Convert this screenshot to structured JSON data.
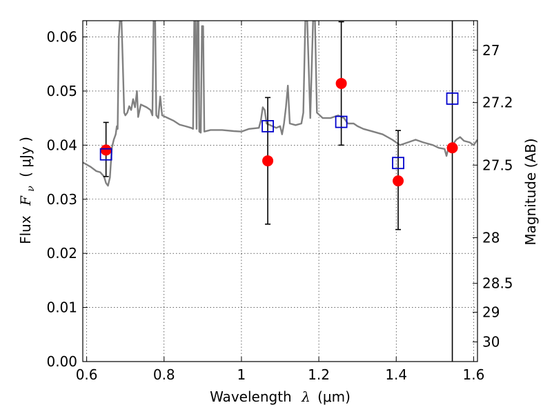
{
  "chart_data": {
    "type": "scatter",
    "xlabel": "Wavelength",
    "xlabel_symbol": "λ",
    "xlabel_unit": "(μm)",
    "ylabel": "Flux",
    "ylabel_symbol": "F",
    "ylabel_subscript": "ν",
    "ylabel_unit": "( μJy )",
    "y2label": "Magnitude (AB)",
    "xlim": [
      0.59,
      1.61
    ],
    "ylim": [
      0.0,
      0.063
    ],
    "grid": true,
    "x_ticks": [
      0.6,
      0.8,
      1.0,
      1.2,
      1.4,
      1.6
    ],
    "x_tick_labels": [
      "0.6",
      "0.8",
      "1",
      "1.2",
      "1.4",
      "1.6"
    ],
    "y_ticks": [
      0.0,
      0.01,
      0.02,
      0.03,
      0.04,
      0.05,
      0.06
    ],
    "y_tick_labels": [
      "0.00",
      "0.01",
      "0.02",
      "0.03",
      "0.04",
      "0.05",
      "0.06"
    ],
    "mag_ticks": [
      27,
      27.2,
      27.5,
      28,
      28.5,
      29,
      30
    ],
    "mag_tick_labels": [
      "27",
      "27.2",
      "27.5",
      "28",
      "28.5",
      "29",
      "30"
    ],
    "series": [
      {
        "kind": "observed",
        "marker": "filled-circle",
        "color": "#ff0000",
        "x": [
          0.65,
          1.068,
          1.258,
          1.405,
          1.545
        ],
        "y": [
          0.0391,
          0.0371,
          0.0514,
          0.0334,
          0.0395
        ],
        "yerr_low": [
          0.0342,
          0.0254,
          0.04,
          0.0244,
          0.0
        ],
        "yerr_high": [
          0.0442,
          0.0488,
          0.0628,
          0.0427,
          0.063
        ]
      },
      {
        "kind": "model",
        "marker": "open-square",
        "color": "#0000cc",
        "x": [
          0.65,
          1.068,
          1.258,
          1.405,
          1.545
        ],
        "y": [
          0.0383,
          0.0435,
          0.0443,
          0.0367,
          0.0486
        ]
      },
      {
        "kind": "spectrum",
        "color": "#808080",
        "points": [
          [
            0.59,
            0.0368
          ],
          [
            0.61,
            0.036
          ],
          [
            0.625,
            0.0352
          ],
          [
            0.635,
            0.035
          ],
          [
            0.645,
            0.0342
          ],
          [
            0.65,
            0.033
          ],
          [
            0.655,
            0.0325
          ],
          [
            0.66,
            0.034
          ],
          [
            0.665,
            0.0395
          ],
          [
            0.67,
            0.041
          ],
          [
            0.675,
            0.042
          ],
          [
            0.678,
            0.0435
          ],
          [
            0.68,
            0.043
          ],
          [
            0.683,
            0.06
          ],
          [
            0.686,
            0.063
          ],
          [
            0.69,
            0.063
          ],
          [
            0.693,
            0.056
          ],
          [
            0.697,
            0.046
          ],
          [
            0.7,
            0.0455
          ],
          [
            0.705,
            0.046
          ],
          [
            0.71,
            0.0472
          ],
          [
            0.715,
            0.0465
          ],
          [
            0.72,
            0.0485
          ],
          [
            0.725,
            0.047
          ],
          [
            0.73,
            0.05
          ],
          [
            0.733,
            0.0452
          ],
          [
            0.74,
            0.0475
          ],
          [
            0.755,
            0.047
          ],
          [
            0.765,
            0.0465
          ],
          [
            0.77,
            0.0455
          ],
          [
            0.773,
            0.063
          ],
          [
            0.777,
            0.063
          ],
          [
            0.78,
            0.0455
          ],
          [
            0.785,
            0.045
          ],
          [
            0.79,
            0.049
          ],
          [
            0.795,
            0.0455
          ],
          [
            0.81,
            0.045
          ],
          [
            0.825,
            0.0445
          ],
          [
            0.84,
            0.0438
          ],
          [
            0.855,
            0.0435
          ],
          [
            0.87,
            0.0432
          ],
          [
            0.875,
            0.043
          ],
          [
            0.878,
            0.063
          ],
          [
            0.881,
            0.063
          ],
          [
            0.884,
            0.043
          ],
          [
            0.886,
            0.063
          ],
          [
            0.889,
            0.063
          ],
          [
            0.891,
            0.0425
          ],
          [
            0.895,
            0.0423
          ],
          [
            0.898,
            0.062
          ],
          [
            0.901,
            0.062
          ],
          [
            0.904,
            0.0425
          ],
          [
            0.92,
            0.0428
          ],
          [
            0.95,
            0.0428
          ],
          [
            0.98,
            0.0426
          ],
          [
            1.0,
            0.0425
          ],
          [
            1.02,
            0.043
          ],
          [
            1.045,
            0.0432
          ],
          [
            1.05,
            0.0445
          ],
          [
            1.055,
            0.047
          ],
          [
            1.06,
            0.0465
          ],
          [
            1.065,
            0.044
          ],
          [
            1.08,
            0.0435
          ],
          [
            1.09,
            0.0432
          ],
          [
            1.1,
            0.0435
          ],
          [
            1.105,
            0.042
          ],
          [
            1.11,
            0.044
          ],
          [
            1.115,
            0.047
          ],
          [
            1.12,
            0.051
          ],
          [
            1.125,
            0.044
          ],
          [
            1.14,
            0.0437
          ],
          [
            1.155,
            0.044
          ],
          [
            1.16,
            0.046
          ],
          [
            1.165,
            0.063
          ],
          [
            1.17,
            0.063
          ],
          [
            1.178,
            0.045
          ],
          [
            1.185,
            0.063
          ],
          [
            1.19,
            0.063
          ],
          [
            1.195,
            0.046
          ],
          [
            1.21,
            0.045
          ],
          [
            1.23,
            0.045
          ],
          [
            1.25,
            0.0455
          ],
          [
            1.265,
            0.045
          ],
          [
            1.275,
            0.044
          ],
          [
            1.29,
            0.044
          ],
          [
            1.3,
            0.0435
          ],
          [
            1.315,
            0.043
          ],
          [
            1.34,
            0.0425
          ],
          [
            1.365,
            0.042
          ],
          [
            1.39,
            0.041
          ],
          [
            1.41,
            0.04
          ],
          [
            1.43,
            0.0405
          ],
          [
            1.45,
            0.041
          ],
          [
            1.47,
            0.0405
          ],
          [
            1.495,
            0.04
          ],
          [
            1.51,
            0.0395
          ],
          [
            1.525,
            0.0393
          ],
          [
            1.53,
            0.038
          ],
          [
            1.535,
            0.0395
          ],
          [
            1.545,
            0.04
          ],
          [
            1.555,
            0.041
          ],
          [
            1.565,
            0.0415
          ],
          [
            1.575,
            0.0408
          ],
          [
            1.59,
            0.0405
          ],
          [
            1.6,
            0.04
          ],
          [
            1.61,
            0.041
          ]
        ]
      }
    ]
  }
}
